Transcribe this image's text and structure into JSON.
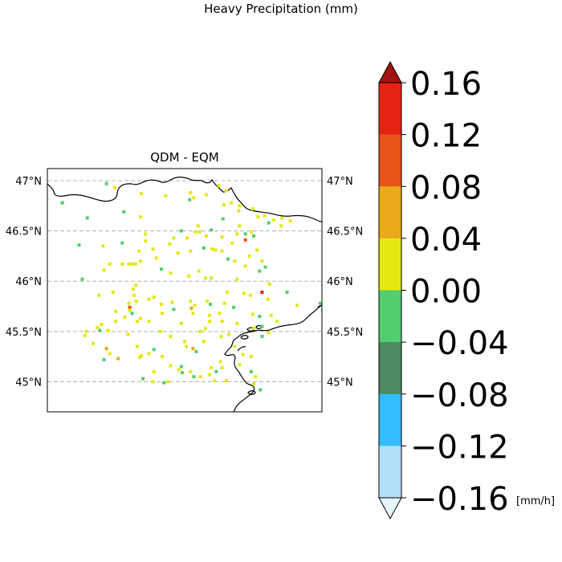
{
  "figure": {
    "title": "Heavy Precipitation (mm)",
    "subplot_title": "QDM - EQM"
  },
  "chart_data": {
    "type": "heatmap",
    "title": "QDM - EQM",
    "suptitle": "Heavy Precipitation (mm)",
    "lat_ticks": [
      "47°N",
      "46.5°N",
      "46°N",
      "45.5°N",
      "45°N"
    ],
    "lat_values": [
      47.0,
      46.5,
      46.0,
      45.5,
      45.0
    ],
    "lat_range": [
      44.7,
      47.12
    ],
    "lon_range": [
      7.0,
      10.3
    ],
    "grid": "latitude gridlines dashed",
    "colorbar": {
      "unit": "[mm/h]",
      "ticks": [
        "0.16",
        "0.12",
        "0.08",
        "0.04",
        "0.00",
        "−0.04",
        "−0.08",
        "−0.12",
        "−0.16"
      ],
      "boundaries": [
        -0.16,
        -0.12,
        -0.08,
        -0.04,
        0.0,
        0.04,
        0.08,
        0.12,
        0.16
      ],
      "colors": [
        "#b2dffa",
        "#33bdfe",
        "#4e8a62",
        "#52cd70",
        "#e4e811",
        "#e9a919",
        "#e85417",
        "#e52313"
      ],
      "under_color": "#e6f4fc",
      "over_color": "#a11510",
      "extend": "both"
    },
    "points": [
      {
        "lon": 9.06,
        "lat": 46.95,
        "v": 0.01
      },
      {
        "lon": 9.15,
        "lat": 46.9,
        "v": 0.01
      },
      {
        "lon": 8.72,
        "lat": 46.88,
        "v": 0.01
      },
      {
        "lon": 8.91,
        "lat": 46.86,
        "v": 0.02
      },
      {
        "lon": 7.81,
        "lat": 46.93,
        "v": 0.01
      },
      {
        "lon": 8.13,
        "lat": 46.87,
        "v": 0.01
      },
      {
        "lon": 7.71,
        "lat": 46.97,
        "v": -0.01
      },
      {
        "lon": 8.42,
        "lat": 46.85,
        "v": 0.01
      },
      {
        "lon": 8.71,
        "lat": 46.81,
        "v": -0.02
      },
      {
        "lon": 8.76,
        "lat": 46.83,
        "v": 0.01
      },
      {
        "lon": 9.12,
        "lat": 46.76,
        "v": 0.01
      },
      {
        "lon": 9.31,
        "lat": 46.75,
        "v": 0.01
      },
      {
        "lon": 9.47,
        "lat": 46.72,
        "v": 0.01
      },
      {
        "lon": 9.21,
        "lat": 46.78,
        "v": 0.01
      },
      {
        "lon": 7.18,
        "lat": 46.78,
        "v": -0.01
      },
      {
        "lon": 7.92,
        "lat": 46.69,
        "v": -0.01
      },
      {
        "lon": 7.48,
        "lat": 46.63,
        "v": -0.01
      },
      {
        "lon": 8.12,
        "lat": 46.64,
        "v": 0.01
      },
      {
        "lon": 9.61,
        "lat": 46.65,
        "v": 0.01
      },
      {
        "lon": 9.72,
        "lat": 46.61,
        "v": 0.01
      },
      {
        "lon": 9.82,
        "lat": 46.63,
        "v": 0.01
      },
      {
        "lon": 9.53,
        "lat": 46.64,
        "v": 0.01
      },
      {
        "lon": 9.81,
        "lat": 46.55,
        "v": 0.01
      },
      {
        "lon": 9.92,
        "lat": 46.6,
        "v": 0.01
      },
      {
        "lon": 9.66,
        "lat": 46.58,
        "v": -0.01
      },
      {
        "lon": 9.11,
        "lat": 46.62,
        "v": -0.01
      },
      {
        "lon": 9.31,
        "lat": 46.55,
        "v": 0.01
      },
      {
        "lon": 8.81,
        "lat": 46.55,
        "v": 0.01
      },
      {
        "lon": 8.83,
        "lat": 46.49,
        "v": 0.01
      },
      {
        "lon": 8.61,
        "lat": 46.5,
        "v": -0.01
      },
      {
        "lon": 8.78,
        "lat": 46.49,
        "v": 0.01
      },
      {
        "lon": 8.52,
        "lat": 46.43,
        "v": 0.01
      },
      {
        "lon": 8.68,
        "lat": 46.43,
        "v": 0.01
      },
      {
        "lon": 8.47,
        "lat": 46.37,
        "v": 0.01
      },
      {
        "lon": 8.91,
        "lat": 46.45,
        "v": 0.01
      },
      {
        "lon": 8.97,
        "lat": 46.51,
        "v": -0.01
      },
      {
        "lon": 9.1,
        "lat": 46.44,
        "v": 0.01
      },
      {
        "lon": 9.22,
        "lat": 46.38,
        "v": 0.01
      },
      {
        "lon": 9.28,
        "lat": 46.47,
        "v": 0.01
      },
      {
        "lon": 9.38,
        "lat": 46.47,
        "v": -0.01
      },
      {
        "lon": 9.45,
        "lat": 46.49,
        "v": 0.01
      },
      {
        "lon": 9.48,
        "lat": 46.45,
        "v": -0.01
      },
      {
        "lon": 9.38,
        "lat": 46.41,
        "v": 0.11
      },
      {
        "lon": 9.52,
        "lat": 46.31,
        "v": 0.01
      },
      {
        "lon": 9.58,
        "lat": 46.2,
        "v": 0.01
      },
      {
        "lon": 9.62,
        "lat": 46.14,
        "v": -0.01
      },
      {
        "lon": 9.55,
        "lat": 46.1,
        "v": -0.02
      },
      {
        "lon": 9.43,
        "lat": 46.25,
        "v": 0.01
      },
      {
        "lon": 9.1,
        "lat": 46.3,
        "v": 0.01
      },
      {
        "lon": 9.17,
        "lat": 46.22,
        "v": -0.01
      },
      {
        "lon": 9.25,
        "lat": 46.2,
        "v": 0.01
      },
      {
        "lon": 9.38,
        "lat": 46.15,
        "v": 0.01
      },
      {
        "lon": 8.88,
        "lat": 46.33,
        "v": -0.01
      },
      {
        "lon": 8.98,
        "lat": 46.32,
        "v": 0.01
      },
      {
        "lon": 9.02,
        "lat": 46.31,
        "v": 0.01
      },
      {
        "lon": 8.72,
        "lat": 46.3,
        "v": 0.01
      },
      {
        "lon": 8.57,
        "lat": 46.28,
        "v": 0.01
      },
      {
        "lon": 8.82,
        "lat": 46.1,
        "v": 0.01
      },
      {
        "lon": 7.38,
        "lat": 46.36,
        "v": -0.01
      },
      {
        "lon": 7.67,
        "lat": 46.35,
        "v": 0.01
      },
      {
        "lon": 7.9,
        "lat": 46.38,
        "v": -0.01
      },
      {
        "lon": 8.18,
        "lat": 46.4,
        "v": 0.01
      },
      {
        "lon": 8.27,
        "lat": 46.32,
        "v": 0.01
      },
      {
        "lon": 8.1,
        "lat": 46.3,
        "v": 0.01
      },
      {
        "lon": 8.31,
        "lat": 46.23,
        "v": 0.01
      },
      {
        "lon": 8.12,
        "lat": 46.2,
        "v": 0.01
      },
      {
        "lon": 7.9,
        "lat": 46.17,
        "v": 0.01
      },
      {
        "lon": 7.98,
        "lat": 46.17,
        "v": 0.01
      },
      {
        "lon": 8.02,
        "lat": 46.17,
        "v": 0.01
      },
      {
        "lon": 8.06,
        "lat": 46.17,
        "v": 0.01
      },
      {
        "lon": 8.7,
        "lat": 46.05,
        "v": 0.01
      },
      {
        "lon": 8.9,
        "lat": 46.03,
        "v": 0.01
      },
      {
        "lon": 8.97,
        "lat": 46.03,
        "v": 0.01
      },
      {
        "lon": 8.48,
        "lat": 46.08,
        "v": 0.01
      },
      {
        "lon": 7.68,
        "lat": 46.11,
        "v": 0.01
      },
      {
        "lon": 7.42,
        "lat": 46.02,
        "v": -0.01
      },
      {
        "lon": 9.28,
        "lat": 46.02,
        "v": 0.01
      },
      {
        "lon": 9.67,
        "lat": 45.97,
        "v": 0.01
      },
      {
        "lon": 9.88,
        "lat": 45.89,
        "v": -0.01
      },
      {
        "lon": 9.58,
        "lat": 45.89,
        "v": 0.12
      },
      {
        "lon": 9.65,
        "lat": 45.82,
        "v": 0.01
      },
      {
        "lon": 9.36,
        "lat": 45.88,
        "v": 0.01
      },
      {
        "lon": 9.16,
        "lat": 45.89,
        "v": 0.01
      },
      {
        "lon": 9.44,
        "lat": 45.86,
        "v": 0.01
      },
      {
        "lon": 7.62,
        "lat": 45.86,
        "v": 0.01
      },
      {
        "lon": 7.79,
        "lat": 45.89,
        "v": 0.01
      },
      {
        "lon": 8.03,
        "lat": 45.92,
        "v": 0.01
      },
      {
        "lon": 8.06,
        "lat": 45.96,
        "v": 0.01
      },
      {
        "lon": 7.98,
        "lat": 45.78,
        "v": 0.01
      },
      {
        "lon": 8.07,
        "lat": 45.8,
        "v": 0.01
      },
      {
        "lon": 8.22,
        "lat": 45.82,
        "v": 0.01
      },
      {
        "lon": 8.28,
        "lat": 45.84,
        "v": 0.01
      },
      {
        "lon": 8.04,
        "lat": 45.86,
        "v": 0.01
      },
      {
        "lon": 8.37,
        "lat": 45.77,
        "v": 0.01
      },
      {
        "lon": 8.5,
        "lat": 45.79,
        "v": 0.01
      },
      {
        "lon": 8.52,
        "lat": 45.72,
        "v": -0.01
      },
      {
        "lon": 8.72,
        "lat": 45.8,
        "v": 0.01
      },
      {
        "lon": 8.77,
        "lat": 45.76,
        "v": 0.01
      },
      {
        "lon": 8.73,
        "lat": 45.73,
        "v": 0.07
      },
      {
        "lon": 8.75,
        "lat": 45.68,
        "v": 0.01
      },
      {
        "lon": 8.92,
        "lat": 45.8,
        "v": 0.01
      },
      {
        "lon": 8.96,
        "lat": 45.77,
        "v": -0.01
      },
      {
        "lon": 9.13,
        "lat": 45.78,
        "v": 0.01
      },
      {
        "lon": 9.24,
        "lat": 45.74,
        "v": -0.01
      },
      {
        "lon": 9.07,
        "lat": 45.68,
        "v": 0.01
      },
      {
        "lon": 8.95,
        "lat": 45.66,
        "v": 0.01
      },
      {
        "lon": 9.47,
        "lat": 45.67,
        "v": 0.01
      },
      {
        "lon": 9.55,
        "lat": 45.65,
        "v": -0.01
      },
      {
        "lon": 9.69,
        "lat": 45.66,
        "v": 0.01
      },
      {
        "lon": 9.76,
        "lat": 45.6,
        "v": 0.01
      },
      {
        "lon": 10.28,
        "lat": 45.78,
        "v": -0.01
      },
      {
        "lon": 10.31,
        "lat": 45.71,
        "v": -0.01
      },
      {
        "lon": 10.0,
        "lat": 45.76,
        "v": 0.01
      },
      {
        "lon": 9.28,
        "lat": 45.58,
        "v": 0.01
      },
      {
        "lon": 9.48,
        "lat": 45.53,
        "v": 0.01
      },
      {
        "lon": 9.58,
        "lat": 45.55,
        "v": -0.01
      },
      {
        "lon": 9.66,
        "lat": 45.49,
        "v": 0.01
      },
      {
        "lon": 9.18,
        "lat": 45.47,
        "v": 0.01
      },
      {
        "lon": 9.09,
        "lat": 45.45,
        "v": 0.01
      },
      {
        "lon": 7.99,
        "lat": 45.74,
        "v": 0.11
      },
      {
        "lon": 7.99,
        "lat": 45.71,
        "v": 0.02
      },
      {
        "lon": 8.02,
        "lat": 45.68,
        "v": -0.01
      },
      {
        "lon": 7.82,
        "lat": 45.7,
        "v": 0.01
      },
      {
        "lon": 7.93,
        "lat": 45.64,
        "v": 0.01
      },
      {
        "lon": 7.82,
        "lat": 45.6,
        "v": 0.01
      },
      {
        "lon": 7.65,
        "lat": 45.57,
        "v": 0.01
      },
      {
        "lon": 7.6,
        "lat": 45.54,
        "v": 0.01
      },
      {
        "lon": 7.63,
        "lat": 45.51,
        "v": -0.01
      },
      {
        "lon": 7.47,
        "lat": 45.5,
        "v": 0.01
      },
      {
        "lon": 7.45,
        "lat": 45.46,
        "v": 0.01
      },
      {
        "lon": 7.55,
        "lat": 45.38,
        "v": 0.01
      },
      {
        "lon": 7.73,
        "lat": 45.51,
        "v": 0.01
      },
      {
        "lon": 7.97,
        "lat": 45.47,
        "v": 0.01
      },
      {
        "lon": 8.08,
        "lat": 45.6,
        "v": 0.01
      },
      {
        "lon": 8.12,
        "lat": 45.63,
        "v": 0.01
      },
      {
        "lon": 8.22,
        "lat": 45.6,
        "v": 0.01
      },
      {
        "lon": 8.38,
        "lat": 45.68,
        "v": 0.01
      },
      {
        "lon": 8.36,
        "lat": 45.5,
        "v": 0.01
      },
      {
        "lon": 8.48,
        "lat": 45.45,
        "v": 0.01
      },
      {
        "lon": 8.61,
        "lat": 45.58,
        "v": 0.01
      },
      {
        "lon": 8.65,
        "lat": 45.4,
        "v": 0.01
      },
      {
        "lon": 8.67,
        "lat": 45.35,
        "v": 0.01
      },
      {
        "lon": 8.84,
        "lat": 45.5,
        "v": 0.01
      },
      {
        "lon": 8.9,
        "lat": 45.53,
        "v": 0.01
      },
      {
        "lon": 8.88,
        "lat": 45.4,
        "v": 0.01
      },
      {
        "lon": 8.75,
        "lat": 45.33,
        "v": 0.06
      },
      {
        "lon": 8.79,
        "lat": 45.3,
        "v": -0.01
      },
      {
        "lon": 7.71,
        "lat": 45.33,
        "v": 0.05
      },
      {
        "lon": 7.75,
        "lat": 45.28,
        "v": 0.01
      },
      {
        "lon": 7.68,
        "lat": 45.22,
        "v": -0.01
      },
      {
        "lon": 7.85,
        "lat": 45.23,
        "v": 0.06
      },
      {
        "lon": 8.08,
        "lat": 45.35,
        "v": 0.01
      },
      {
        "lon": 8.13,
        "lat": 45.26,
        "v": 0.01
      },
      {
        "lon": 8.22,
        "lat": 45.28,
        "v": 0.01
      },
      {
        "lon": 8.28,
        "lat": 45.32,
        "v": -0.01
      },
      {
        "lon": 8.48,
        "lat": 45.16,
        "v": 0.01
      },
      {
        "lon": 8.61,
        "lat": 45.15,
        "v": -0.01
      },
      {
        "lon": 8.58,
        "lat": 45.12,
        "v": 0.01
      },
      {
        "lon": 8.72,
        "lat": 45.1,
        "v": 0.01
      },
      {
        "lon": 8.62,
        "lat": 45.09,
        "v": -0.01
      },
      {
        "lon": 8.76,
        "lat": 45.05,
        "v": -0.02
      },
      {
        "lon": 8.84,
        "lat": 45.05,
        "v": 0.01
      },
      {
        "lon": 8.95,
        "lat": 45.07,
        "v": 0.01
      },
      {
        "lon": 8.97,
        "lat": 45.14,
        "v": 0.01
      },
      {
        "lon": 9.03,
        "lat": 45.1,
        "v": -0.01
      },
      {
        "lon": 9.15,
        "lat": 45.01,
        "v": 0.01
      },
      {
        "lon": 9.1,
        "lat": 45.14,
        "v": 0.01
      },
      {
        "lon": 9.08,
        "lat": 45.2,
        "v": 0.01
      },
      {
        "lon": 9.31,
        "lat": 45.17,
        "v": 0.01
      },
      {
        "lon": 9.35,
        "lat": 45.27,
        "v": 0.01
      },
      {
        "lon": 9.25,
        "lat": 45.35,
        "v": 0.01
      },
      {
        "lon": 9.45,
        "lat": 45.1,
        "v": -0.01
      },
      {
        "lon": 9.5,
        "lat": 45.05,
        "v": 0.01
      },
      {
        "lon": 9.48,
        "lat": 44.98,
        "v": 0.01
      },
      {
        "lon": 9.56,
        "lat": 44.92,
        "v": -0.01
      },
      {
        "lon": 9.1,
        "lat": 45.6,
        "v": 0.01
      },
      {
        "lon": 8.95,
        "lat": 45.6,
        "v": 0.01
      },
      {
        "lon": 8.11,
        "lat": 45.24,
        "v": 0.01
      },
      {
        "lon": 8.38,
        "lat": 45.25,
        "v": 0.01
      },
      {
        "lon": 8.28,
        "lat": 45.1,
        "v": 0.01
      },
      {
        "lon": 8.15,
        "lat": 45.03,
        "v": -0.01
      },
      {
        "lon": 8.27,
        "lat": 45.0,
        "v": 0.01
      },
      {
        "lon": 8.4,
        "lat": 44.99,
        "v": -0.01
      },
      {
        "lon": 8.45,
        "lat": 45.0,
        "v": 0.01
      },
      {
        "lon": 9.01,
        "lat": 45.01,
        "v": 0.01
      },
      {
        "lon": 9.45,
        "lat": 45.25,
        "v": 0.01
      },
      {
        "lon": 9.58,
        "lat": 45.45,
        "v": -0.01
      },
      {
        "lon": 7.75,
        "lat": 46.17,
        "v": 0.01
      },
      {
        "lon": 8.18,
        "lat": 46.47,
        "v": 0.01
      },
      {
        "lon": 8.37,
        "lat": 46.12,
        "v": -0.01
      },
      {
        "lon": 9.3,
        "lat": 46.7,
        "v": 0.01
      }
    ]
  }
}
